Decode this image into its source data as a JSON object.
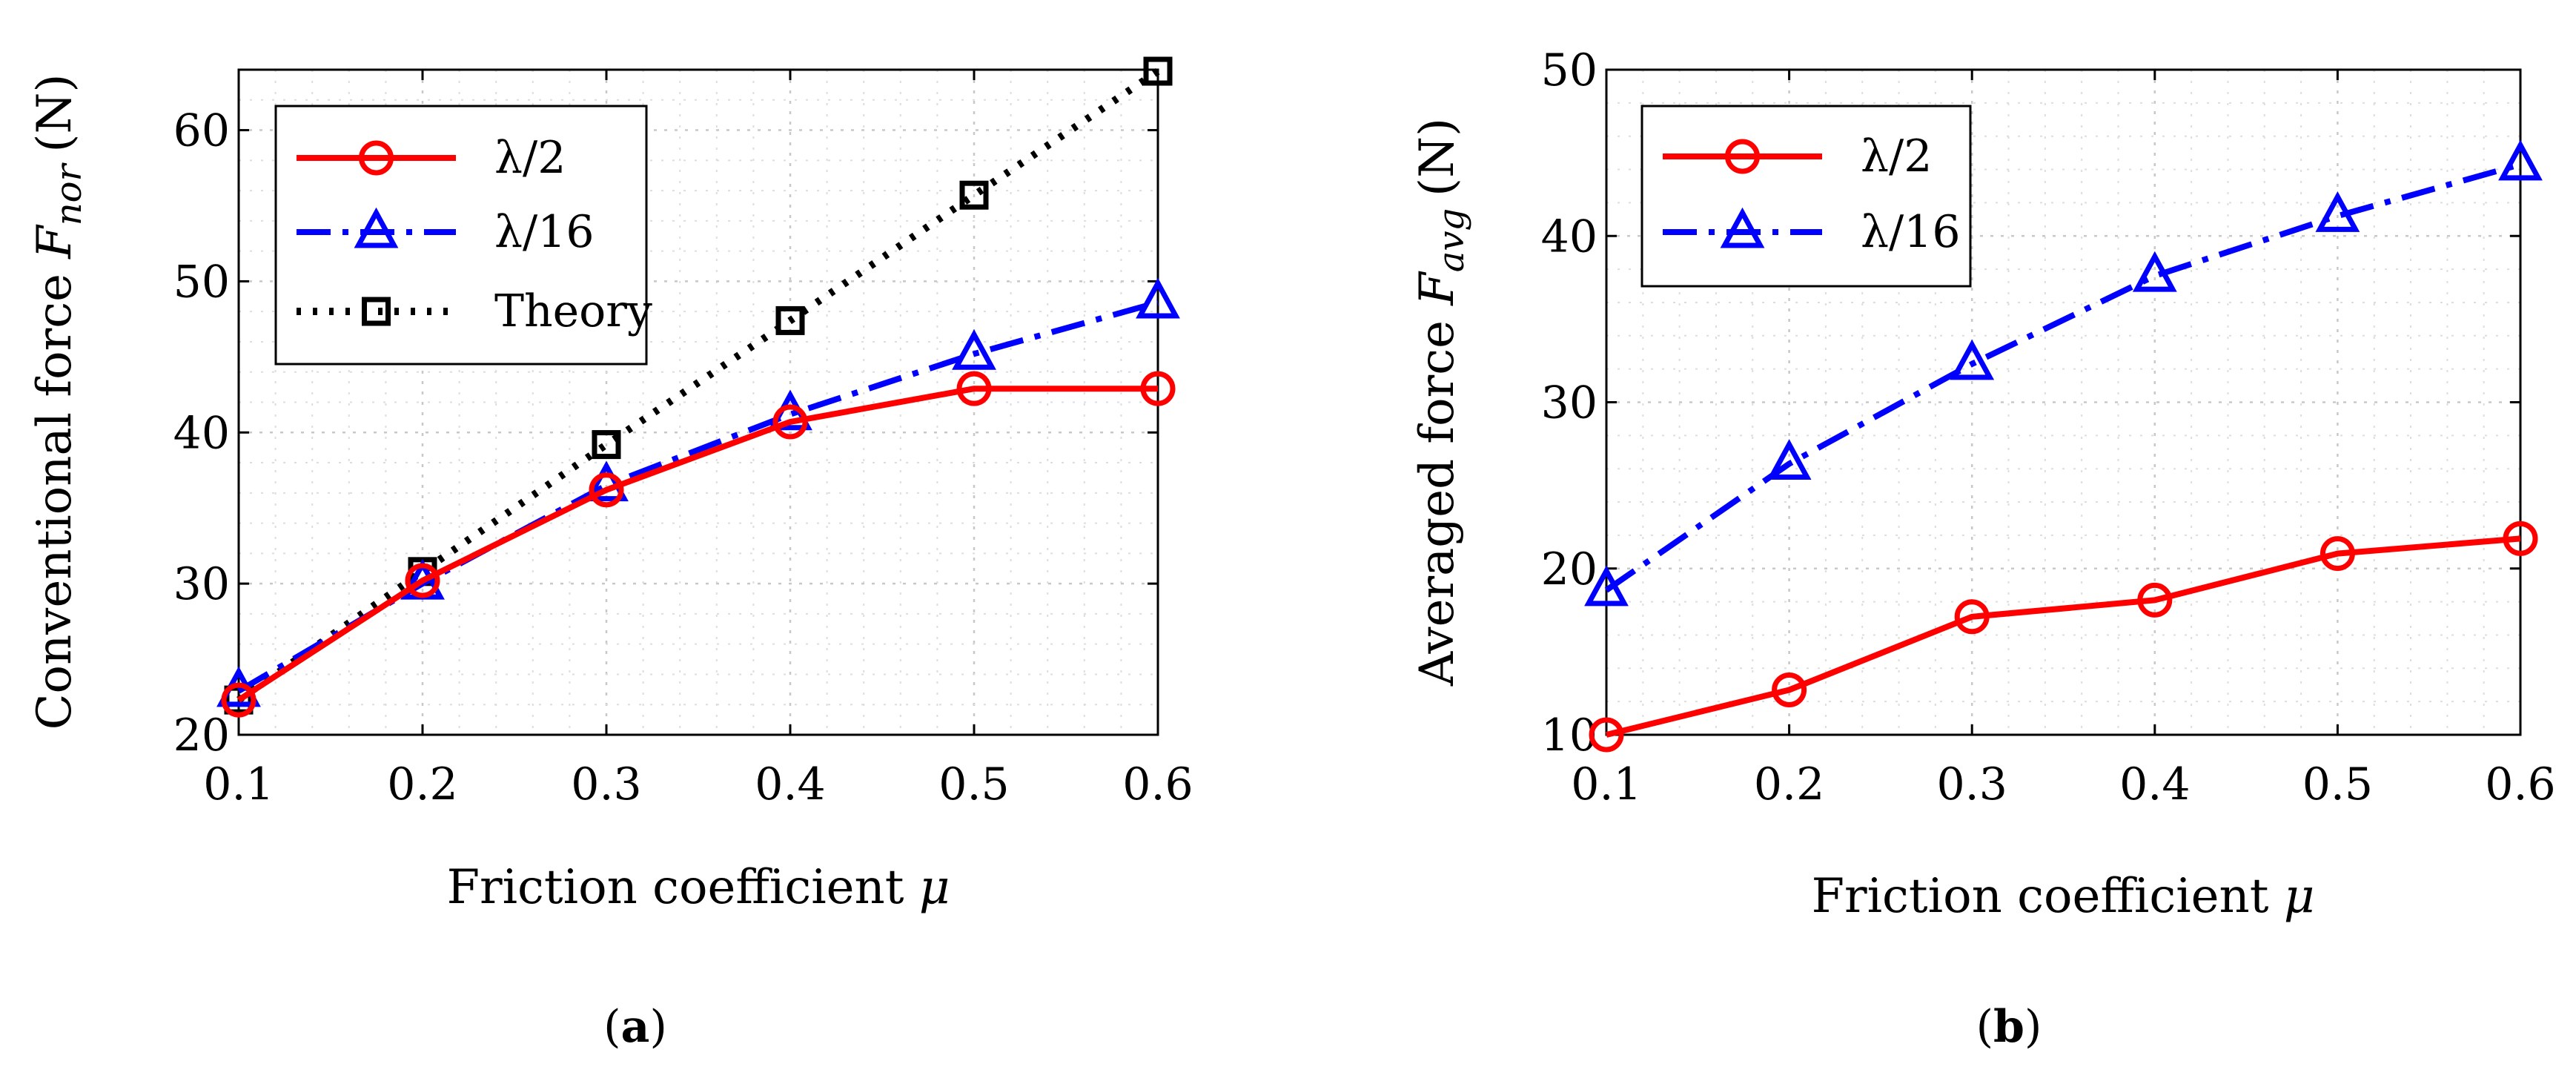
{
  "chart_data": [
    {
      "type": "line",
      "caption_label": "a",
      "x": [
        0.1,
        0.2,
        0.3,
        0.4,
        0.5,
        0.6
      ],
      "xlim": [
        0.1,
        0.6
      ],
      "ylim": [
        20,
        64
      ],
      "x_ticks": [
        "0.1",
        "0.2",
        "0.3",
        "0.4",
        "0.5",
        "0.6"
      ],
      "y_ticks": [
        20,
        30,
        40,
        50,
        60
      ],
      "xlabel": "Friction coefficient",
      "xlabel_symbol": "μ",
      "ylabel": "Conventional force",
      "ylabel_symbol": "F",
      "ylabel_subscript": "nor",
      "ylabel_unit": "(N)",
      "grid": true,
      "legend_position": "top-left",
      "series": [
        {
          "name": "λ/2",
          "values": [
            22.3,
            30.2,
            36.2,
            40.7,
            42.9,
            42.9
          ],
          "color": "#ff0000",
          "marker": "circle",
          "dash": "solid"
        },
        {
          "name": "λ/16",
          "values": [
            22.9,
            30.0,
            36.5,
            41.2,
            45.2,
            48.6
          ],
          "color": "#0000ff",
          "marker": "triangle",
          "dash": "dashdot"
        },
        {
          "name": "Theory",
          "values": [
            22.3,
            30.8,
            39.2,
            47.4,
            55.7,
            63.9
          ],
          "color": "#000000",
          "marker": "square",
          "dash": "dotted"
        }
      ]
    },
    {
      "type": "line",
      "caption_label": "b",
      "x": [
        0.1,
        0.2,
        0.3,
        0.4,
        0.5,
        0.6
      ],
      "xlim": [
        0.1,
        0.6
      ],
      "ylim": [
        10,
        50
      ],
      "x_ticks": [
        "0.1",
        "0.2",
        "0.3",
        "0.4",
        "0.5",
        "0.6"
      ],
      "y_ticks": [
        10,
        20,
        30,
        40,
        50
      ],
      "xlabel": "Friction coefficient",
      "xlabel_symbol": "μ",
      "ylabel": "Averaged force",
      "ylabel_symbol": "F",
      "ylabel_subscript": "avg",
      "ylabel_unit": "(N)",
      "grid": true,
      "legend_position": "top-left",
      "series": [
        {
          "name": "λ/2",
          "values": [
            10.0,
            12.7,
            17.1,
            18.1,
            20.9,
            21.8
          ],
          "color": "#ff0000",
          "marker": "circle",
          "dash": "solid"
        },
        {
          "name": "λ/16",
          "values": [
            18.7,
            26.3,
            32.3,
            37.6,
            41.2,
            44.3
          ],
          "color": "#0000ff",
          "marker": "triangle",
          "dash": "dashdot"
        }
      ]
    }
  ]
}
